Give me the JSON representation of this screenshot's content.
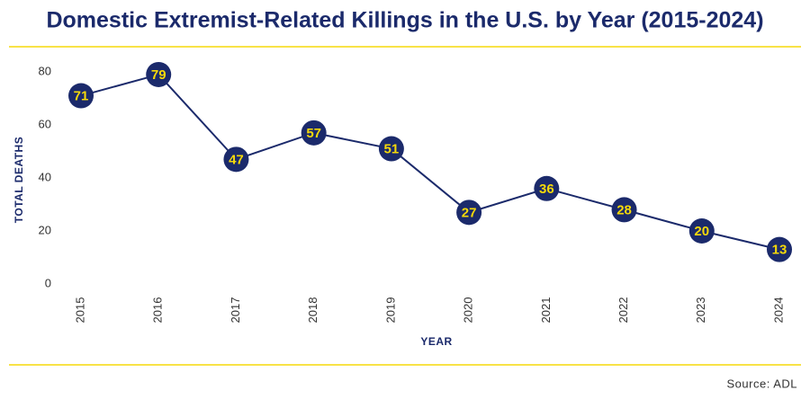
{
  "chart_data": {
    "type": "line",
    "title": "Domestic Extremist-Related Killings in the U.S. by Year (2015-2024)",
    "x_label": "YEAR",
    "y_label": "TOTAL DEATHS",
    "source": "Source: ADL",
    "categories": [
      "2015",
      "2016",
      "2017",
      "2018",
      "2019",
      "2020",
      "2021",
      "2022",
      "2023",
      "2024"
    ],
    "values": [
      71,
      79,
      47,
      57,
      51,
      27,
      36,
      28,
      20,
      13
    ],
    "color": "#1b2a6b",
    "label_color": "#f5d90a",
    "ylim": [
      0,
      80
    ],
    "yticks": [
      0,
      20,
      40,
      60,
      80
    ],
    "grid": false
  }
}
